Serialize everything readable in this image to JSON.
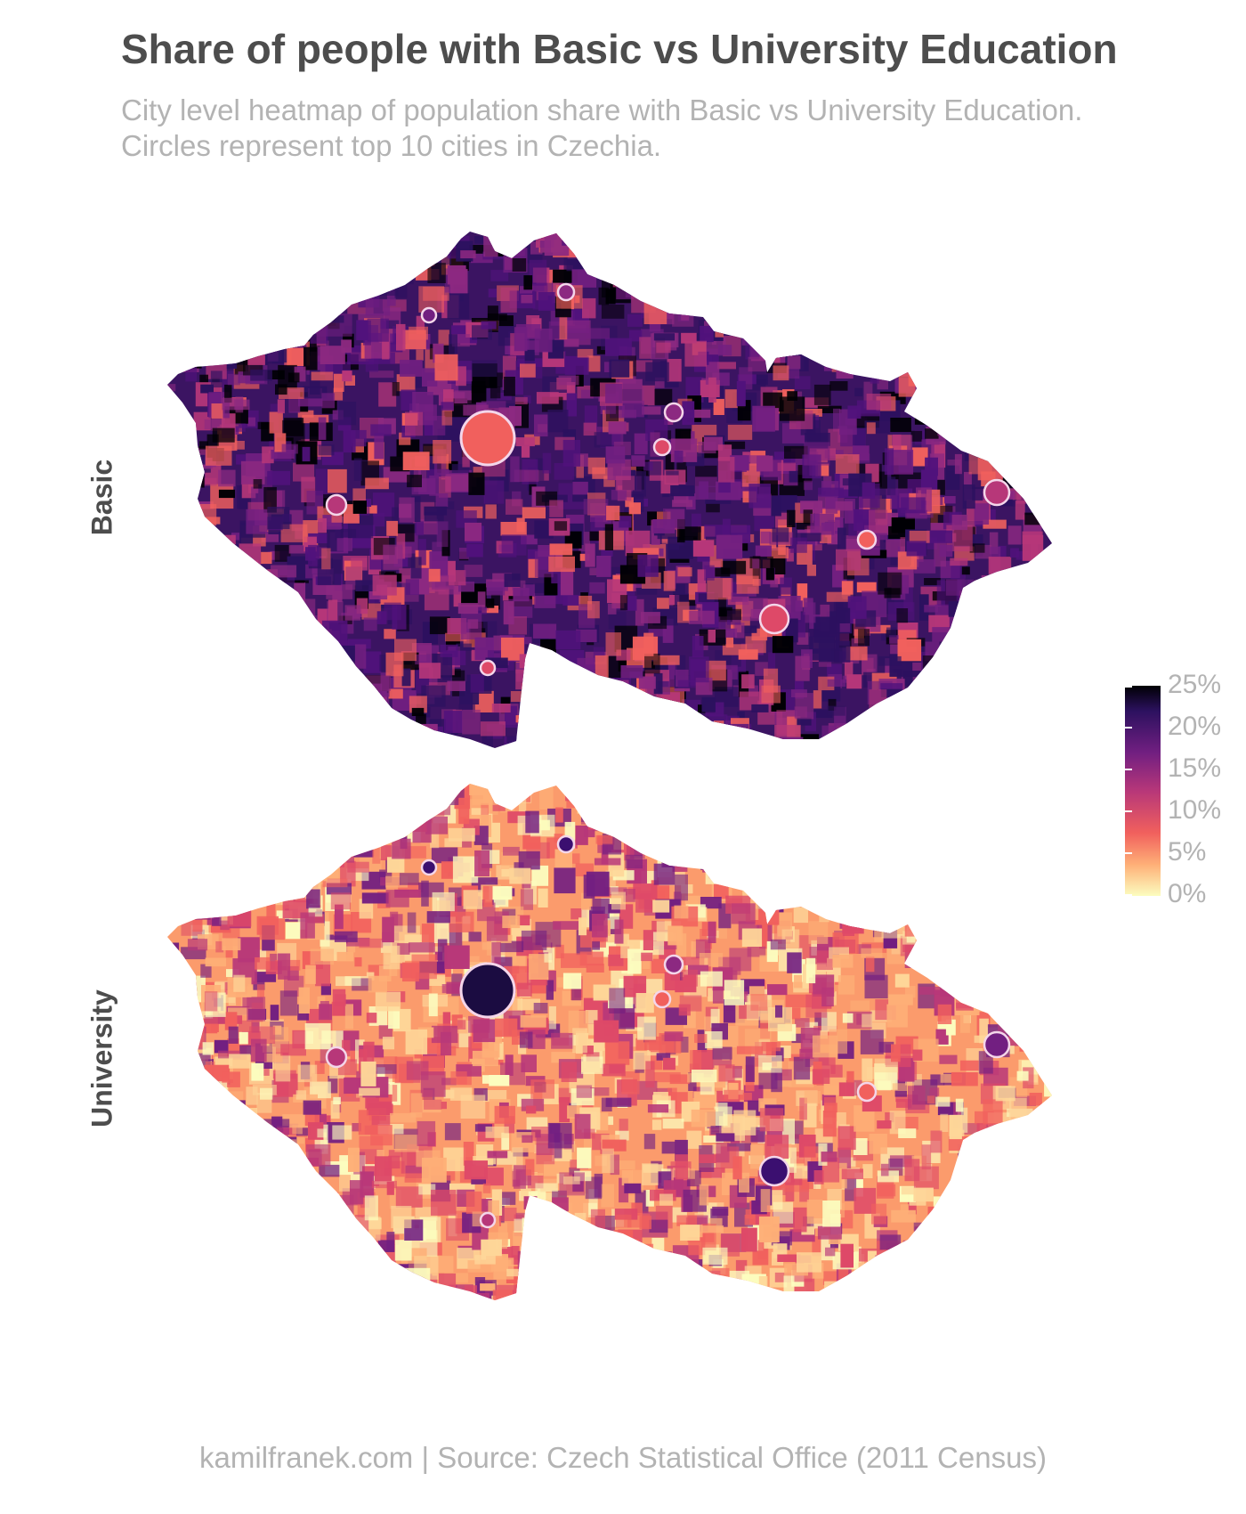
{
  "title": "Share of people with Basic vs University Education",
  "subtitle_line1": "City level heatmap of population share with Basic vs University Education.",
  "subtitle_line2": "Circles represent top 10 cities in Czechia.",
  "panels": [
    {
      "label": "Basic",
      "base_color": "#3b1462",
      "alt_colors": [
        "#000004",
        "#2c115f",
        "#51127c",
        "#721f81",
        "#8c2981",
        "#b73779",
        "#f1605d"
      ]
    },
    {
      "label": "University",
      "base_color": "#fb9b6c",
      "alt_colors": [
        "#fcfdbf",
        "#fed799",
        "#feaf77",
        "#f1605d",
        "#de4968",
        "#b73779",
        "#721f81"
      ]
    }
  ],
  "legend": {
    "ticks": [
      "25%",
      "20%",
      "15%",
      "10%",
      "5%",
      "0%"
    ],
    "colors": [
      "#000004",
      "#2c115f",
      "#721f81",
      "#b73779",
      "#f1605d",
      "#feaf77",
      "#fcfdbf"
    ]
  },
  "cities": {
    "basic_fill": [
      "#f1605d",
      "#de4968",
      "#b73779",
      "#b73779",
      "#8c2981",
      "#de4968",
      "#f1605d",
      "#8c2981",
      "#721f81",
      "#de4968"
    ],
    "university_fill": [
      "#1b0c41",
      "#3b0f70",
      "#b73779",
      "#721f81",
      "#8c2981",
      "#f1605d",
      "#f1605d",
      "#3b0f70",
      "#3b0f70",
      "#b73779"
    ]
  },
  "caption": "kamilfranek.com  |  Source: Czech Statistical Office (2011 Census)"
}
